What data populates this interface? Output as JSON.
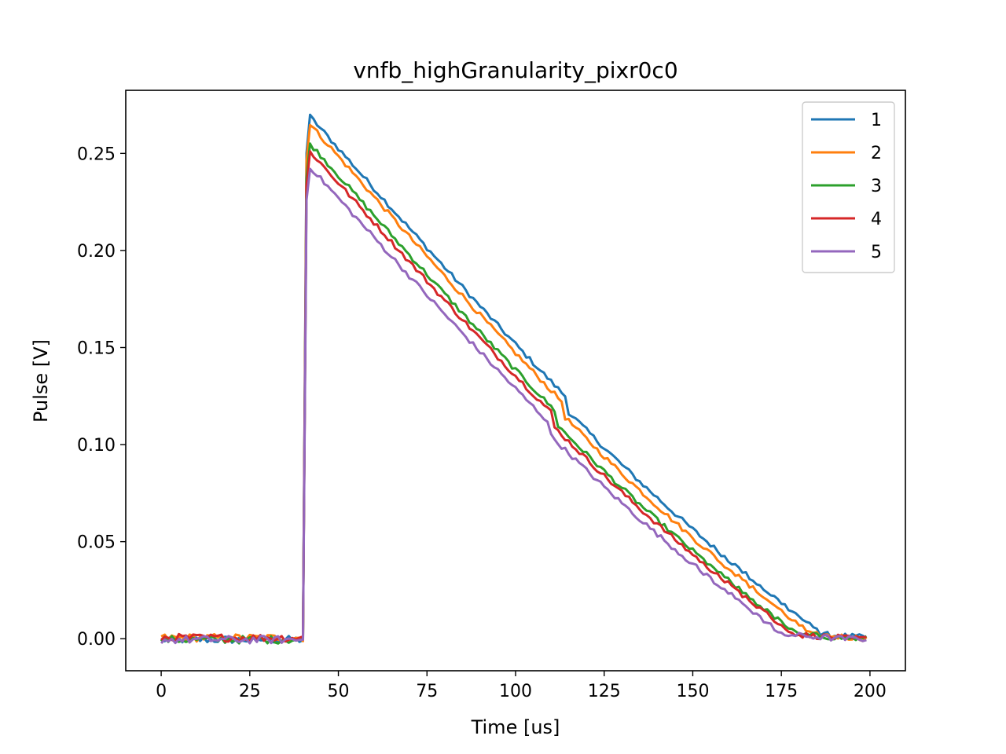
{
  "chart_data": {
    "type": "line",
    "title": "vnfb_highGranularity_pixr0c0",
    "xlabel": "Time [us]",
    "ylabel": "Pulse [V]",
    "xlim": [
      -10,
      210
    ],
    "ylim": [
      -0.0165,
      0.2825
    ],
    "xticks": [
      0,
      25,
      50,
      75,
      100,
      125,
      150,
      175,
      200
    ],
    "xtick_labels": [
      "0",
      "25",
      "50",
      "75",
      "100",
      "125",
      "150",
      "175",
      "200"
    ],
    "yticks": [
      0.0,
      0.05,
      0.1,
      0.15,
      0.2,
      0.25
    ],
    "ytick_labels": [
      "0.00",
      "0.05",
      "0.10",
      "0.15",
      "0.20",
      "0.25"
    ],
    "grid": false,
    "legend_position": "top-right",
    "rise_time_us": 40,
    "series": [
      {
        "name": "1",
        "color": "#1f77b4",
        "peak": 0.269,
        "end_time": 188
      },
      {
        "name": "2",
        "color": "#ff7f0e",
        "peak": 0.265,
        "end_time": 185
      },
      {
        "name": "3",
        "color": "#2ca02c",
        "peak": 0.255,
        "end_time": 181
      },
      {
        "name": "4",
        "color": "#d62728",
        "peak": 0.251,
        "end_time": 180
      },
      {
        "name": "5",
        "color": "#9467bd",
        "peak": 0.243,
        "end_time": 177
      }
    ]
  }
}
